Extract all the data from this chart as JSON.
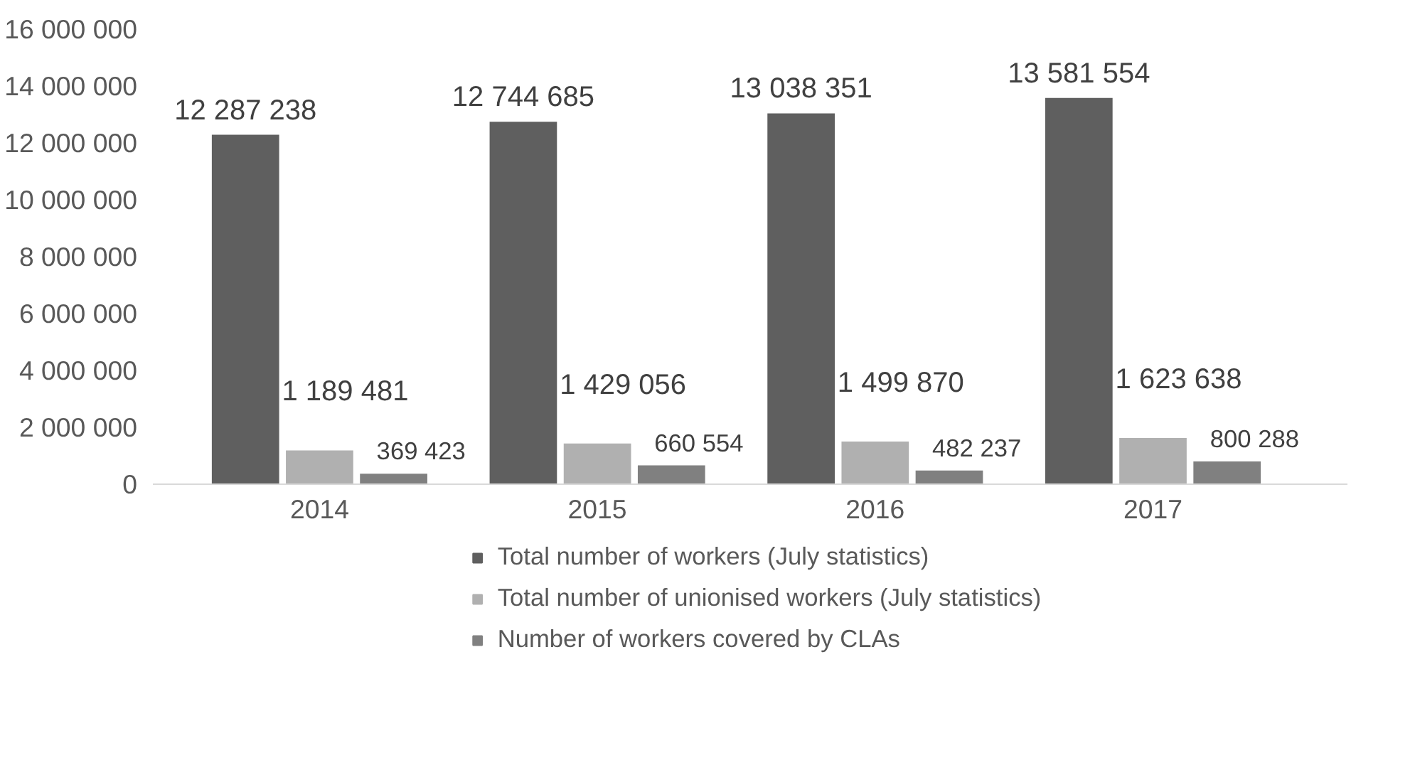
{
  "chart_data": {
    "type": "bar",
    "categories": [
      "2014",
      "2015",
      "2016",
      "2017"
    ],
    "ylim": [
      0,
      16000000
    ],
    "yticks": [
      {
        "value": 0,
        "label": "0"
      },
      {
        "value": 2000000,
        "label": "2 000 000"
      },
      {
        "value": 4000000,
        "label": "4 000 000"
      },
      {
        "value": 6000000,
        "label": "6 000 000"
      },
      {
        "value": 8000000,
        "label": "8 000 000"
      },
      {
        "value": 10000000,
        "label": "10 000 000"
      },
      {
        "value": 12000000,
        "label": "12 000 000"
      },
      {
        "value": 14000000,
        "label": "14 000 000"
      },
      {
        "value": 16000000,
        "label": "16 000 000"
      }
    ],
    "legend": "bottom",
    "series": [
      {
        "name": "Total number of workers (July statistics)",
        "color": "#5f5f5f",
        "values": [
          12287238,
          12744685,
          13038351,
          13581554
        ],
        "value_labels": [
          "12 287 238",
          "12 744 685",
          "13 038 351",
          "13 581 554"
        ]
      },
      {
        "name": "Total number of unionised workers (July statistics)",
        "color": "#b0b0b0",
        "values": [
          1189481,
          1429056,
          1499870,
          1623638
        ],
        "value_labels": [
          "1 189 481",
          "1 429 056",
          "1 499 870",
          "1 623 638"
        ]
      },
      {
        "name": "Number of workers covered by CLAs",
        "color": "#808080",
        "values": [
          369423,
          660554,
          482237,
          800288
        ],
        "value_labels": [
          "369 423",
          "660 554",
          "482 237",
          "800 288"
        ]
      }
    ]
  }
}
